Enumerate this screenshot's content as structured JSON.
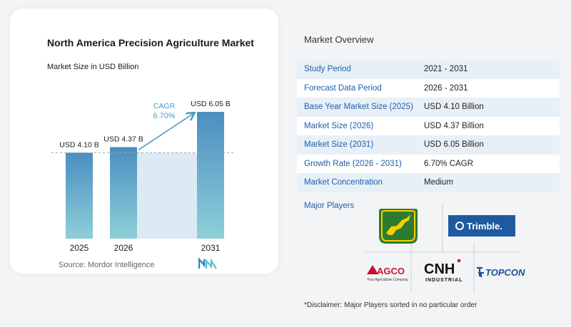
{
  "chart": {
    "title": "North America Precision Agriculture Market",
    "subtitle": "Market Size in USD Billion",
    "source": "Source: Mordor Intelligence",
    "cagr_label": "CAGR",
    "cagr_value": "6.70%",
    "bar_color_top": "#4a8fc1",
    "bar_color_bottom": "#8fcfd8"
  },
  "chart_data": {
    "type": "bar",
    "title": "North America Precision Agriculture Market",
    "subtitle": "Market Size in USD Billion",
    "categories": [
      "2025",
      "2026",
      "2031"
    ],
    "values": [
      4.1,
      4.37,
      6.05
    ],
    "labels": [
      "USD 4.10 B",
      "USD 4.37 B",
      "USD 6.05 B"
    ],
    "ylim": [
      0,
      6.05
    ],
    "unit": "USD Billion"
  },
  "overview": {
    "title": "Market Overview",
    "rows": [
      {
        "key": "Study Period",
        "value": "2021 - 2031"
      },
      {
        "key": "Forecast Data Period",
        "value": "2026 - 2031"
      },
      {
        "key": "Base Year Market Size (2025)",
        "value": "USD 4.10 Billion"
      },
      {
        "key": "Market Size (2026)",
        "value": "USD 4.37 Billion"
      },
      {
        "key": "Market Size (2031)",
        "value": "USD 6.05 Billion"
      },
      {
        "key": "Growth Rate (2026 - 2031)",
        "value": "6.70% CAGR"
      },
      {
        "key": "Market Concentration",
        "value": "Medium"
      }
    ]
  },
  "players": {
    "title": "Major Players",
    "trimble": "Trimble.",
    "agco": "AGCO",
    "agco_tagline": "Your Agriculture Company",
    "cnh": "CNH",
    "cnh_sub": "INDUSTRIAL",
    "topcon": "TOPCON",
    "deere_icon": "deer-icon"
  },
  "disclaimer": "*Disclaimer: Major Players sorted in no particular order"
}
